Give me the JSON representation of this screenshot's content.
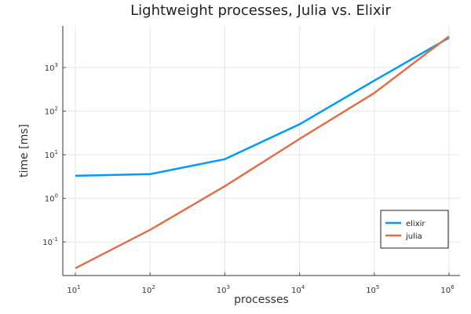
{
  "chart_data": {
    "type": "line",
    "title": "Lightweight processes, Julia vs. Elixir",
    "xlabel": "processes",
    "ylabel": "time [ms]",
    "x_scale": "log10",
    "y_scale": "log10",
    "x": [
      10,
      100,
      1000,
      10000,
      100000,
      1000000
    ],
    "xlim": [
      10,
      1000000
    ],
    "ylim": [
      0.017,
      9000
    ],
    "x_ticks": [
      {
        "base": "10",
        "exp": "1"
      },
      {
        "base": "10",
        "exp": "2"
      },
      {
        "base": "10",
        "exp": "3"
      },
      {
        "base": "10",
        "exp": "4"
      },
      {
        "base": "10",
        "exp": "5"
      },
      {
        "base": "10",
        "exp": "6"
      }
    ],
    "y_ticks": [
      {
        "base": "10",
        "exp": "-1"
      },
      {
        "base": "10",
        "exp": "0"
      },
      {
        "base": "10",
        "exp": "1"
      },
      {
        "base": "10",
        "exp": "2"
      },
      {
        "base": "10",
        "exp": "3"
      }
    ],
    "grid": true,
    "legend_position": "bottom-right",
    "series": [
      {
        "name": "elixir",
        "color": "#009af9",
        "values": [
          3.3,
          3.6,
          7.9,
          50,
          500,
          4800
        ]
      },
      {
        "name": "julia",
        "color": "#e26f46",
        "values": [
          0.025,
          0.19,
          1.9,
          23,
          260,
          5200
        ]
      }
    ]
  }
}
